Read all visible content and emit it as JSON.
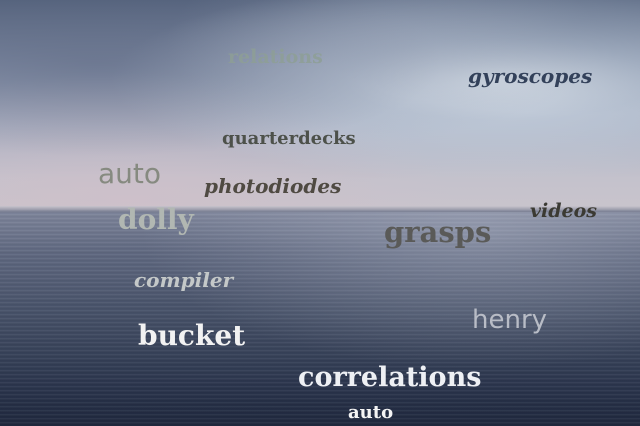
{
  "words": {
    "relations": "relations",
    "gyroscopes": "gyroscopes",
    "quarterdecks": "quarterdecks",
    "auto_left": "auto",
    "photodiodes": "photodiodes",
    "dolly": "dolly",
    "videos": "videos",
    "grasps": "grasps",
    "compiler": "compiler",
    "henry": "henry",
    "bucket": "bucket",
    "correlations": "correlations",
    "auto_bottom": "auto"
  },
  "colors": {
    "relations": "#8e9f96",
    "gyroscopes": "#33415a",
    "quarterdecks": "#4d514a",
    "auto_left": "#868a80",
    "photodiodes": "#4f4a42",
    "dolly": "#b1b7b2",
    "videos": "#3b3a33",
    "grasps": "#5a5a58",
    "compiler": "#c4c8c8",
    "henry": "#b8bcc6",
    "bucket": "#f2f2f2",
    "correlations": "#eef0f4",
    "auto_bottom": "#f5f5f5"
  }
}
